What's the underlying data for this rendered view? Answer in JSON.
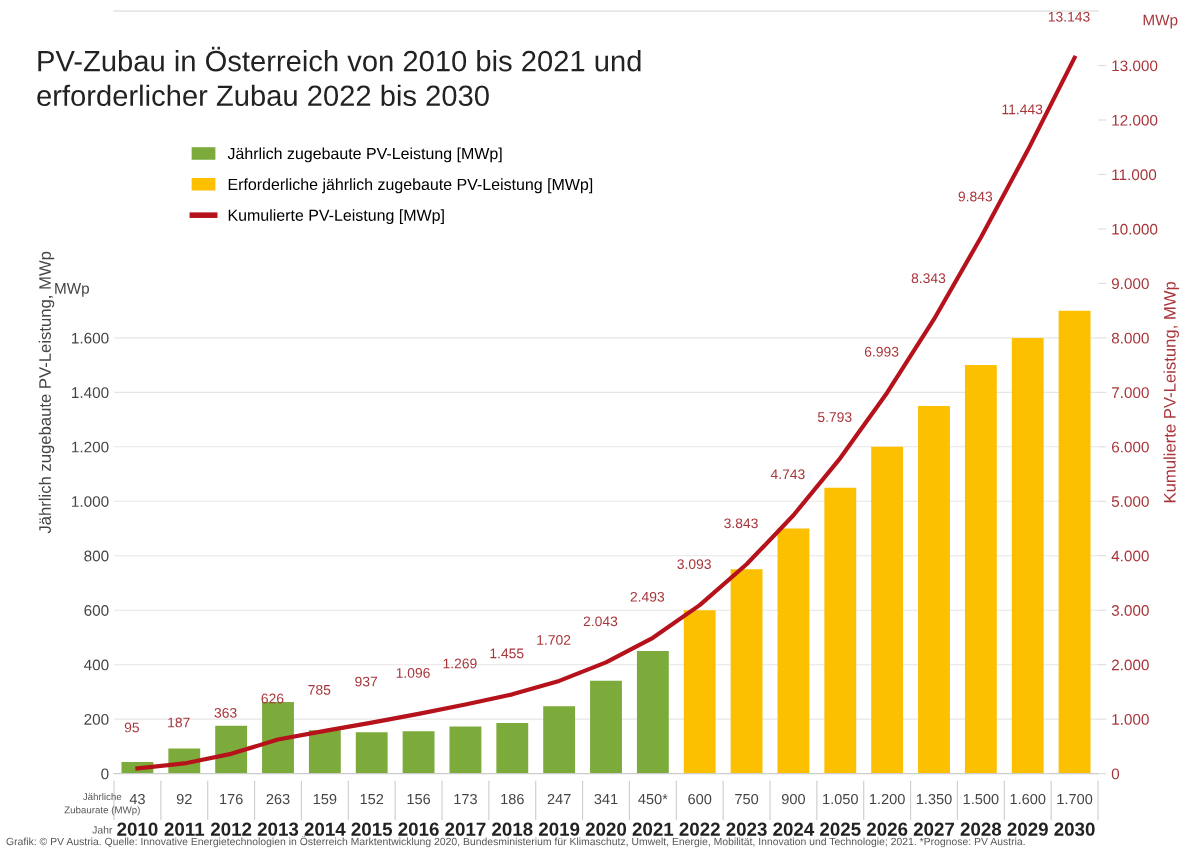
{
  "chart_data": {
    "type": "bar",
    "title": "PV-Zubau in Österreich von 2010 bis 2021 und\nerforderlicher Zubau 2022 bis 2030",
    "ylabel": "Jährlich zugebaute PV-Leistung, MWp",
    "y2label": "Kumulierte PV-Leistung, MWp",
    "categories": [
      "2010",
      "2011",
      "2012",
      "2013",
      "2014",
      "2015",
      "2016",
      "2017",
      "2018",
      "2019",
      "2020",
      "2021",
      "2022",
      "2023",
      "2024",
      "2025",
      "2026",
      "2027",
      "2028",
      "2029",
      "2030"
    ],
    "series": [
      {
        "name": "Jährlich zugebaute PV-Leistung [MWp]",
        "color": "#7cab3c",
        "values": [
          43,
          92,
          176,
          263,
          159,
          152,
          156,
          173,
          186,
          247,
          341,
          450,
          null,
          null,
          null,
          null,
          null,
          null,
          null,
          null,
          null
        ],
        "value_labels": [
          "43",
          "92",
          "176",
          "263",
          "159",
          "152",
          "156",
          "173",
          "186",
          "247",
          "341",
          "450*",
          null,
          null,
          null,
          null,
          null,
          null,
          null,
          null,
          null
        ]
      },
      {
        "name": "Erforderliche jährlich zugebaute PV-Leistung [MWp]",
        "color": "#fcc000",
        "values": [
          null,
          null,
          null,
          null,
          null,
          null,
          null,
          null,
          null,
          null,
          null,
          null,
          600,
          750,
          900,
          1050,
          1200,
          1350,
          1500,
          1600,
          1700
        ],
        "value_labels": [
          null,
          null,
          null,
          null,
          null,
          null,
          null,
          null,
          null,
          null,
          null,
          null,
          "600",
          "750",
          "900",
          "1.050",
          "1.200",
          "1.350",
          "1.500",
          "1.600",
          "1.700"
        ]
      },
      {
        "name": "Kumulierte PV-Leistung [MWp]",
        "type": "line",
        "axis": "y2",
        "color": "#b5121b",
        "values": [
          95,
          187,
          363,
          626,
          785,
          937,
          1096,
          1269,
          1455,
          1702,
          2043,
          2493,
          3093,
          3843,
          4743,
          5793,
          6993,
          8343,
          9843,
          11443,
          13143
        ],
        "value_labels": [
          "95",
          "187",
          "363",
          "626",
          "785",
          "937",
          "1.096",
          "1.269",
          "1.455",
          "1.702",
          "2.043",
          "2.493",
          "3.093",
          "3.843",
          "4.743",
          "5.793",
          "6.993",
          "8.343",
          "9.843",
          "11.443",
          "13.143"
        ]
      }
    ],
    "ylim": [
      0,
      2800
    ],
    "yticks": [
      0,
      200,
      400,
      600,
      800,
      {
        "value": 1000,
        "label": "1.000"
      },
      {
        "value": 1200,
        "label": "1.200"
      },
      {
        "value": 1400,
        "label": "1.400"
      },
      {
        "value": 1600,
        "label": "1.600"
      }
    ],
    "y2lim": [
      0,
      14000
    ],
    "y2ticks": [
      0,
      {
        "value": 1000,
        "label": "1.000"
      },
      {
        "value": 2000,
        "label": "2.000"
      },
      {
        "value": 3000,
        "label": "3.000"
      },
      {
        "value": 4000,
        "label": "4.000"
      },
      {
        "value": 5000,
        "label": "5.000"
      },
      {
        "value": 6000,
        "label": "6.000"
      },
      {
        "value": 7000,
        "label": "7.000"
      },
      {
        "value": 8000,
        "label": "8.000"
      },
      {
        "value": 9000,
        "label": "9.000"
      },
      {
        "value": 10000,
        "label": "10.000"
      },
      {
        "value": 11000,
        "label": "11.000"
      },
      {
        "value": 12000,
        "label": "12.000"
      },
      {
        "value": 13000,
        "label": "13.000"
      }
    ],
    "grid": "y",
    "legend": "top left",
    "marker": "none",
    "line_style": "solid",
    "annotations": [
      "Jährliche\nZubaurate (MWp)",
      "Jahr",
      "MWp",
      "MWp",
      "Grafik: © PV Austria. Quelle: Innovative Energietechnologien in Österreich Marktentwicklung 2020, Bundesministerium für Klimaschutz, Umwelt, Energie, Mobilität, Innovation und Technologie; 2021. *Prognose: PV Austria."
    ]
  }
}
